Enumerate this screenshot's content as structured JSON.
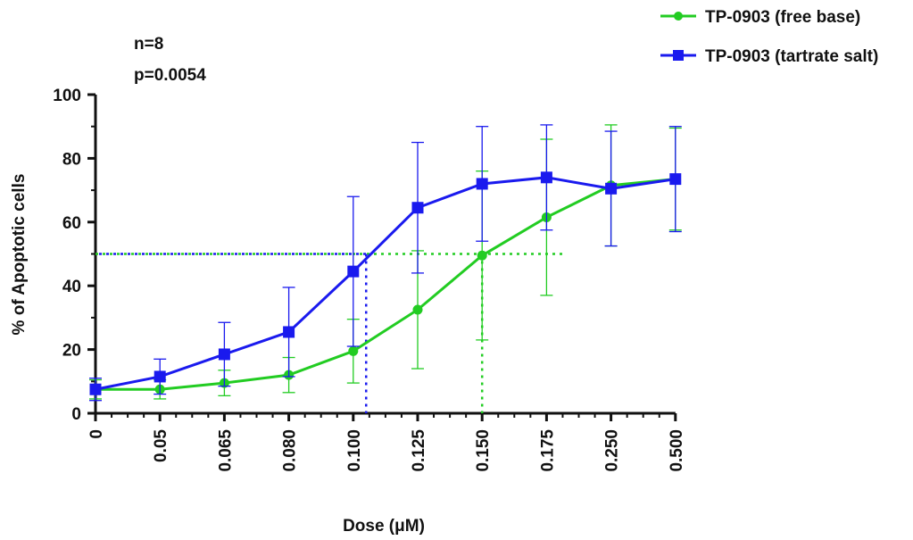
{
  "chart_data": {
    "type": "line",
    "xlabel": "Dose (μM)",
    "ylabel": "% of Apoptotic cells",
    "categories": [
      "0",
      "0.05",
      "0.065",
      "0.080",
      "0.100",
      "0.125",
      "0.150",
      "0.175",
      "0.250",
      "0.500"
    ],
    "yticks": [
      "0",
      "20",
      "40",
      "60",
      "80",
      "100"
    ],
    "ylim": [
      0,
      100
    ],
    "grid": false,
    "legend_position": "top-right",
    "annotations": [
      "n=8",
      "p=0.0054"
    ],
    "series": [
      {
        "name": "TP-0903 (free base)",
        "color": "#22cc22",
        "marker": "circle",
        "values": [
          7.5,
          7.5,
          9.5,
          12,
          19.5,
          32.5,
          49.5,
          61.5,
          71.5,
          73.5
        ],
        "error": [
          3,
          3,
          4,
          5.5,
          10,
          18.5,
          26.5,
          24.5,
          19,
          16
        ],
        "ec50_dose_index": 6.0
      },
      {
        "name": "TP-0903 (tartrate salt)",
        "color": "#1a1aee",
        "marker": "square",
        "values": [
          7.5,
          11.5,
          18.5,
          25.5,
          44.5,
          64.5,
          72,
          74,
          70.5,
          73.5
        ],
        "error": [
          3.5,
          5.5,
          10,
          14,
          23.5,
          20.5,
          18,
          16.5,
          18,
          16.5
        ],
        "ec50_dose_index": 4.2
      }
    ],
    "reference_line_y": 50
  }
}
